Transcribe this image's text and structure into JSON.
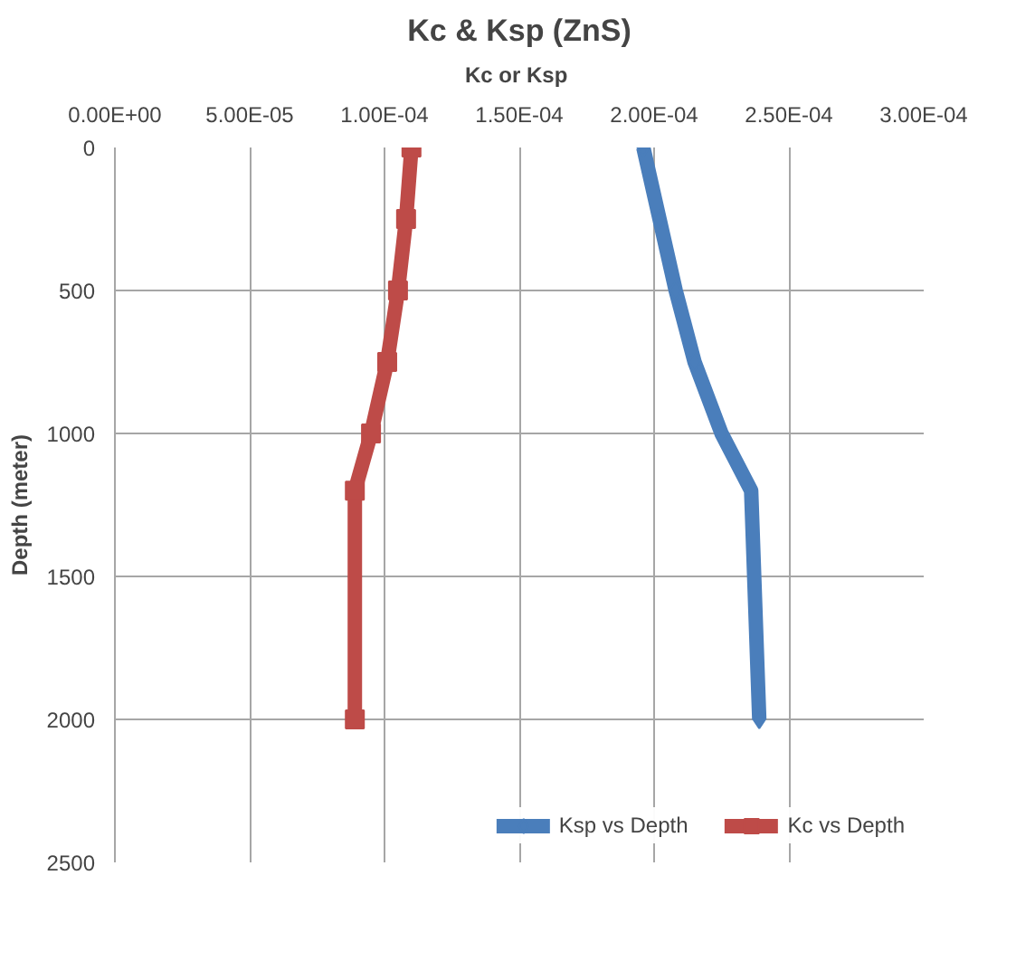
{
  "chart_data": {
    "type": "line",
    "title": "Kc & Ksp (ZnS)",
    "xlabel": "Kc  or Ksp",
    "ylabel": "Depth (meter)",
    "xlim": [
      0,
      0.0003
    ],
    "xticks": [
      {
        "value": 0,
        "label": "0.00E+00"
      },
      {
        "value": 5e-05,
        "label": "5.00E-05"
      },
      {
        "value": 0.0001,
        "label": "1.00E-04"
      },
      {
        "value": 0.00015,
        "label": "1.50E-04"
      },
      {
        "value": 0.0002,
        "label": "2.00E-04"
      },
      {
        "value": 0.00025,
        "label": "2.50E-04"
      },
      {
        "value": 0.0003,
        "label": "3.00E-04"
      }
    ],
    "ylim": [
      2500,
      0
    ],
    "yticks": [
      0,
      500,
      1000,
      1500,
      2000,
      2500
    ],
    "grid": true,
    "legend": "bottom right",
    "series": [
      {
        "name": "Ksp vs Depth",
        "color": "#4a7ebb",
        "marker": "diamond",
        "x": [
          0.000196,
          0.000202,
          0.000208,
          0.000215,
          0.000225,
          0.000236,
          0.000239
        ],
        "values": [
          0,
          250,
          500,
          750,
          1000,
          1200,
          2000
        ]
      },
      {
        "name": "Kc vs Depth",
        "color": "#be4b48",
        "marker": "square",
        "x": [
          0.00011,
          0.000108,
          0.000105,
          0.000101,
          9.5e-05,
          8.9e-05,
          8.9e-05
        ],
        "values": [
          0,
          250,
          500,
          750,
          1000,
          1200,
          2000
        ]
      }
    ]
  }
}
